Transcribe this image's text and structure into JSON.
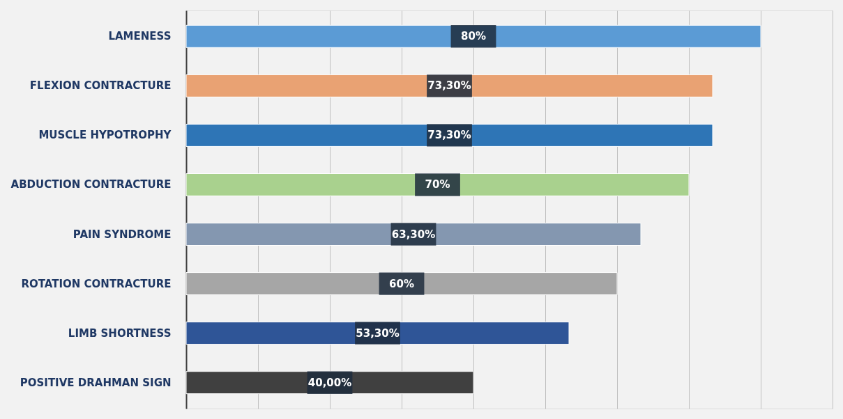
{
  "chart_data": {
    "type": "bar",
    "orientation": "horizontal",
    "categories": [
      "LAMENESS",
      "FLEXION CONTRACTURE",
      "MUSCLE HYPOTROPHY",
      "ABDUCTION CONTRACTURE",
      "PAIN SYNDROME",
      "ROTATION CONTRACTURE",
      "LIMB SHORTNESS",
      "POSITIVE DRAHMAN SIGN"
    ],
    "values": [
      80,
      73.3,
      73.3,
      70,
      63.3,
      60,
      53.3,
      40
    ],
    "value_labels": [
      "80%",
      "73,30%",
      "73,30%",
      "70%",
      "63,30%",
      "60%",
      "53,30%",
      "40,00%"
    ],
    "colors": [
      "#5b9bd5",
      "#e9a273",
      "#2e75b6",
      "#a9d18e",
      "#8497b0",
      "#a6a6a6",
      "#2f5597",
      "#404040"
    ],
    "xlim": [
      0,
      90
    ],
    "grid": "x",
    "tick_labels": "y"
  }
}
